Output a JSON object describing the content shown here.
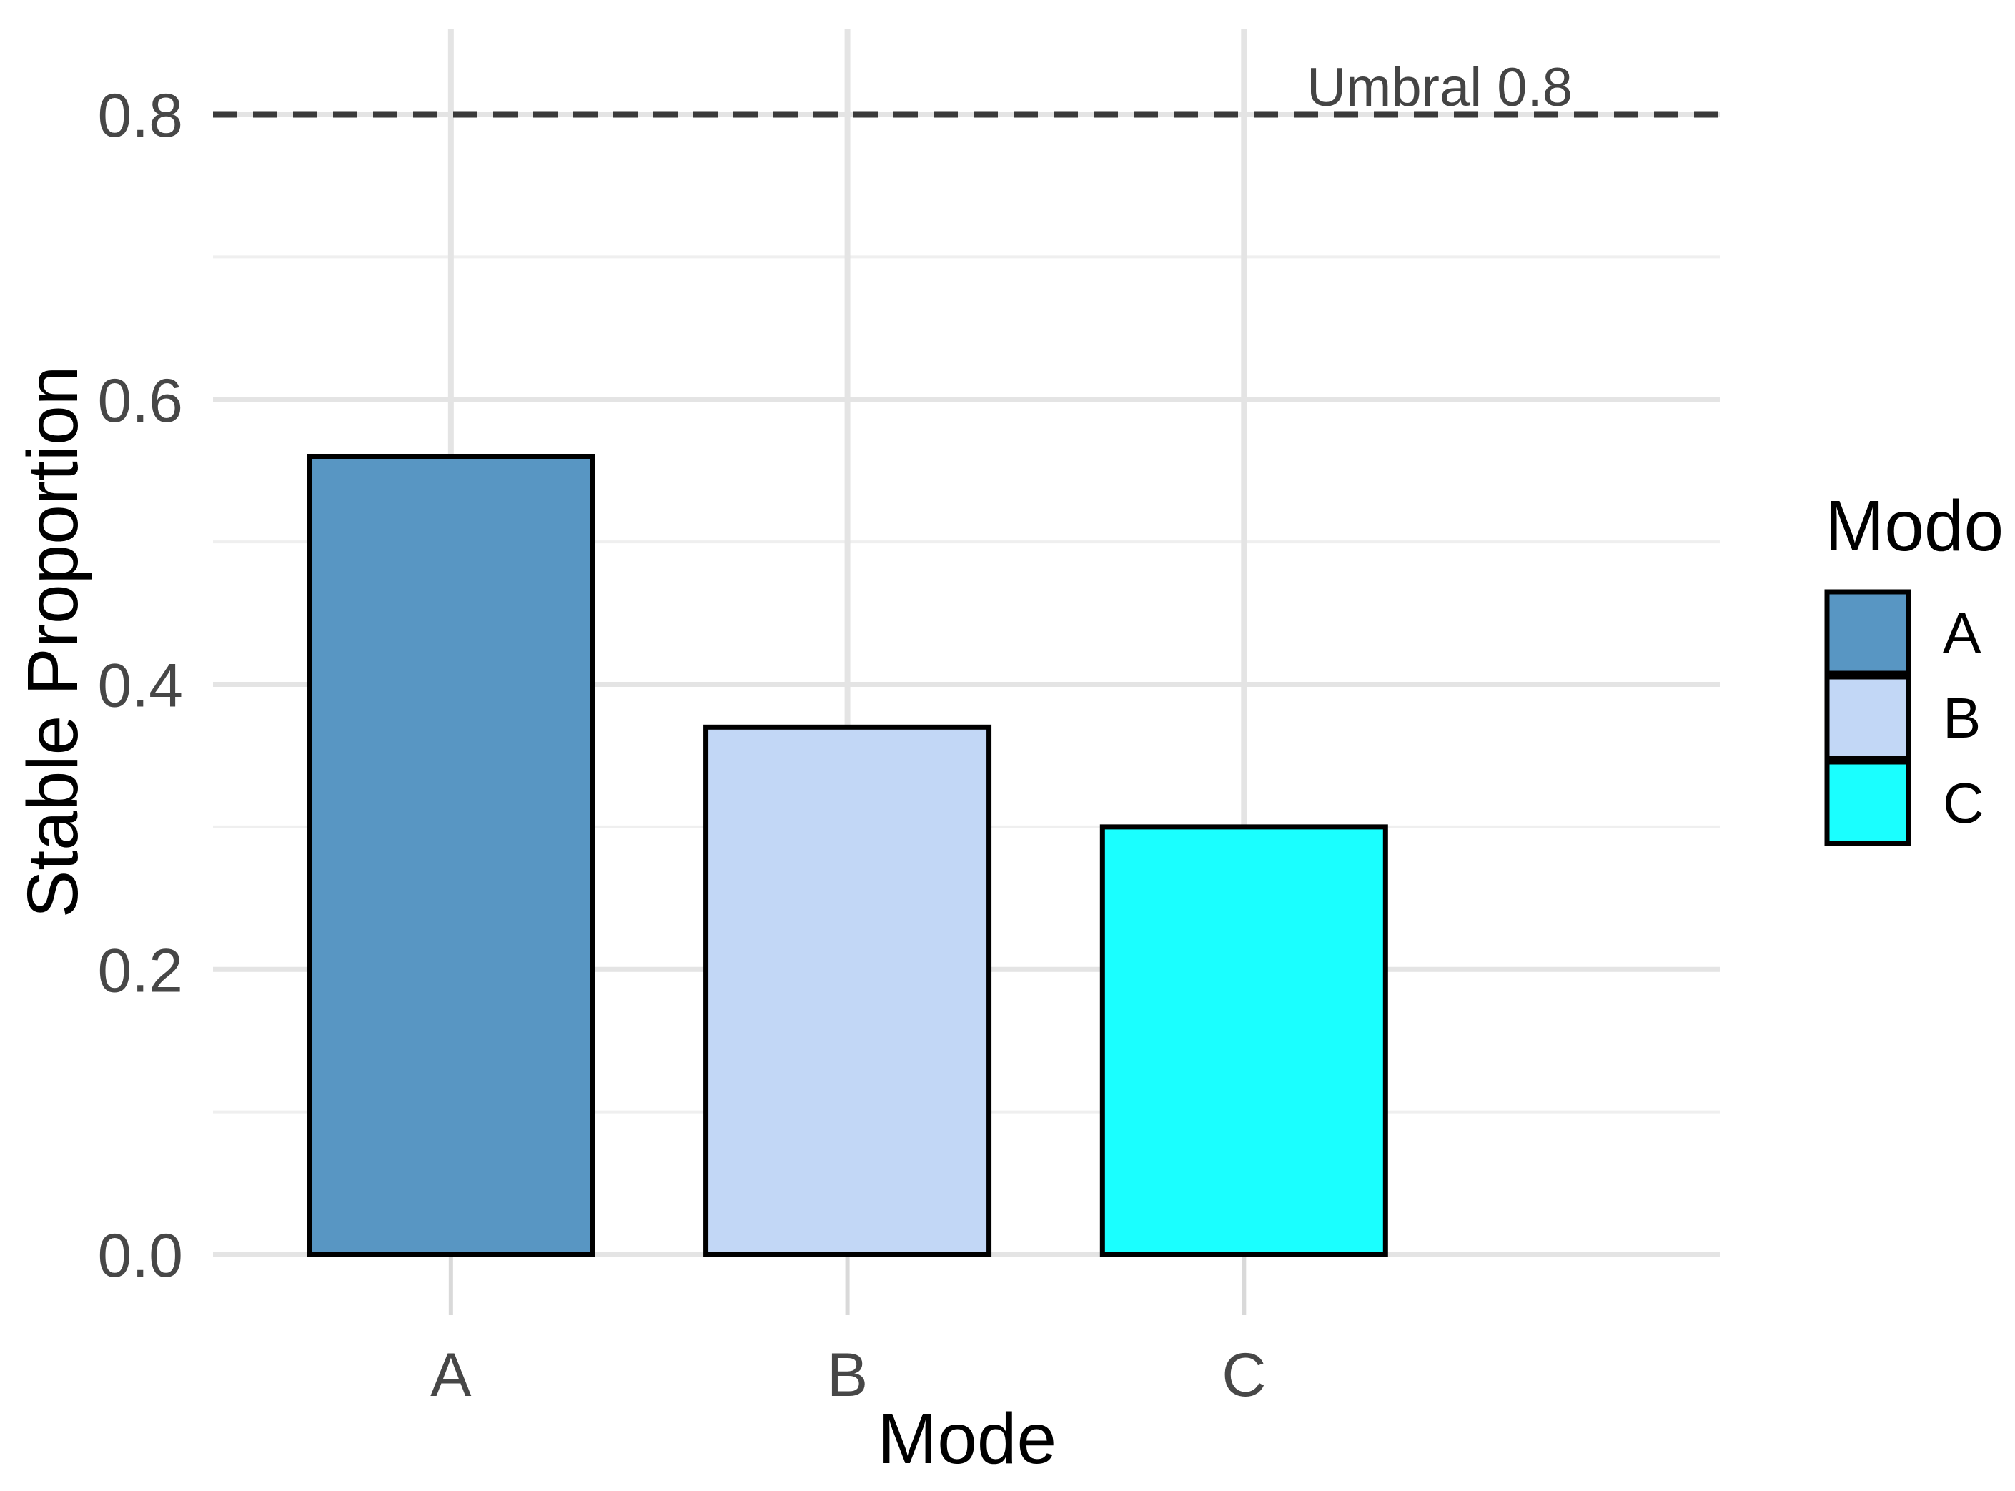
{
  "chart_data": {
    "type": "bar",
    "title": "",
    "categories": [
      "A",
      "B",
      "C"
    ],
    "values": [
      0.56,
      0.37,
      0.3
    ],
    "bar_colors": [
      "#5896C3",
      "#C2D7F6",
      "#1AFFFF"
    ],
    "bar_border_color": "#000000",
    "xlabel": "Mode",
    "ylabel": "Stable Proportion",
    "ylim": [
      0,
      0.86
    ],
    "yticks": [
      0.0,
      0.2,
      0.4,
      0.6,
      0.8
    ],
    "ytick_labels": [
      "0.0",
      "0.2",
      "0.4",
      "0.6",
      "0.8"
    ],
    "minor_yticks": [
      0.1,
      0.3,
      0.5,
      0.7
    ],
    "grid": true,
    "background": "#ffffff",
    "grid_major_color": "#E4E4E4",
    "grid_minor_color": "#EFEFEF",
    "xtick_mark_color": "#D9D9D9",
    "threshold": {
      "value": 0.8,
      "label": "Umbral 0.8",
      "style": "dashed",
      "color": "#3A3A3A"
    },
    "legend": {
      "title": "Modo",
      "position": "right",
      "entries": [
        {
          "label": "A",
          "color": "#5896C3"
        },
        {
          "label": "B",
          "color": "#C2D7F6"
        },
        {
          "label": "C",
          "color": "#1AFFFF"
        }
      ]
    }
  }
}
